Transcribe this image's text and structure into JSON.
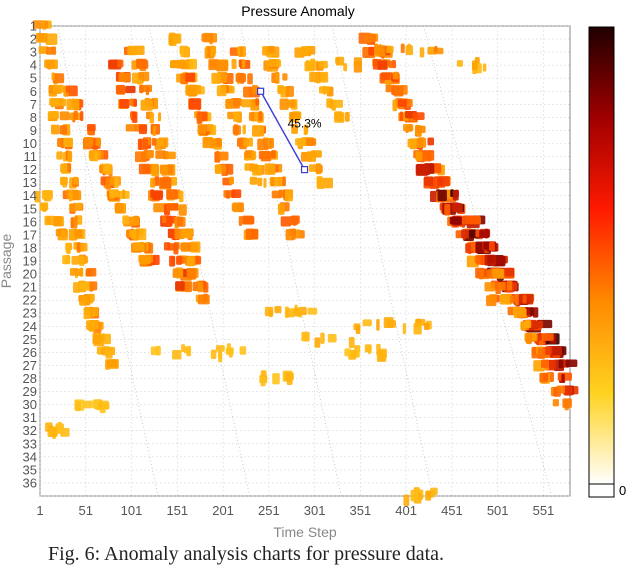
{
  "caption": "Fig. 6: Anomaly analysis charts for pressure data.",
  "colors": {
    "low": "#ffd21f",
    "mid": "#ff5a00",
    "high": "#2a0000"
  },
  "chart_data": {
    "type": "heatmap",
    "title": "Pressure Anomaly",
    "xlabel": "Time Step",
    "ylabel": "Passage",
    "x_ticks": [
      "1",
      "51",
      "101",
      "151",
      "201",
      "251",
      "301",
      "351",
      "401",
      "451",
      "501",
      "551"
    ],
    "y_ticks": [
      "1",
      "2",
      "3",
      "4",
      "5",
      "6",
      "7",
      "8",
      "9",
      "10",
      "11",
      "12",
      "13",
      "14",
      "15",
      "16",
      "17",
      "18",
      "19",
      "20",
      "21",
      "22",
      "23",
      "24",
      "25",
      "26",
      "27",
      "28",
      "29",
      "30",
      "31",
      "32",
      "33",
      "34",
      "35",
      "36"
    ],
    "xlim": [
      1,
      580
    ],
    "ylim": [
      1,
      37
    ],
    "grid": true,
    "colorbar": {
      "min_label": "0",
      "colors": [
        "#ffffff",
        "#ffd21f",
        "#ff8a00",
        "#ff1a00",
        "#a00000",
        "#200000"
      ]
    },
    "annotation": {
      "text": "45.3%",
      "from": [
        242,
        6
      ],
      "to": [
        290,
        12
      ]
    },
    "anomaly_streaks": [
      {
        "x_start": 5,
        "y_start": 1,
        "x_end": 60,
        "y_end": 24,
        "intensity": 0.45
      },
      {
        "x_start": 5,
        "y_start": 14,
        "x_end": 80,
        "y_end": 27,
        "intensity": 0.35
      },
      {
        "x_start": 30,
        "y_start": 6,
        "x_end": 120,
        "y_end": 19,
        "intensity": 0.55
      },
      {
        "x_start": 60,
        "y_start": 10,
        "x_end": 120,
        "y_end": 19,
        "intensity": 0.4
      },
      {
        "x_start": 85,
        "y_start": 4,
        "x_end": 160,
        "y_end": 21,
        "intensity": 0.6
      },
      {
        "x_start": 105,
        "y_start": 3,
        "x_end": 180,
        "y_end": 22,
        "intensity": 0.5
      },
      {
        "x_start": 150,
        "y_start": 2,
        "x_end": 190,
        "y_end": 10,
        "intensity": 0.35
      },
      {
        "x_start": 155,
        "y_start": 4,
        "x_end": 230,
        "y_end": 17,
        "intensity": 0.55
      },
      {
        "x_start": 185,
        "y_start": 2,
        "x_end": 240,
        "y_end": 13,
        "intensity": 0.45
      },
      {
        "x_start": 215,
        "y_start": 3,
        "x_end": 280,
        "y_end": 17,
        "intensity": 0.5
      },
      {
        "x_start": 250,
        "y_start": 3,
        "x_end": 310,
        "y_end": 13,
        "intensity": 0.4
      },
      {
        "x_start": 290,
        "y_start": 3,
        "x_end": 330,
        "y_end": 8,
        "intensity": 0.35
      },
      {
        "x_start": 360,
        "y_start": 2,
        "x_end": 470,
        "y_end": 18,
        "intensity": 0.55
      },
      {
        "x_start": 375,
        "y_start": 3,
        "x_end": 500,
        "y_end": 22,
        "intensity": 0.6
      },
      {
        "x_start": 420,
        "y_start": 12,
        "x_end": 560,
        "y_end": 26,
        "intensity": 0.85
      },
      {
        "x_start": 450,
        "y_start": 14,
        "x_end": 575,
        "y_end": 27,
        "intensity": 0.95
      },
      {
        "x_start": 475,
        "y_start": 16,
        "x_end": 580,
        "y_end": 29,
        "intensity": 0.8
      },
      {
        "x_start": 500,
        "y_start": 20,
        "x_end": 570,
        "y_end": 30,
        "intensity": 0.5
      }
    ],
    "anomaly_clusters": [
      {
        "x_start": 320,
        "x_end": 390,
        "y": 24,
        "intensity": 0.3
      },
      {
        "x_start": 395,
        "x_end": 430,
        "y": 24,
        "intensity": 0.3
      },
      {
        "x_start": 290,
        "x_end": 360,
        "y": 25,
        "intensity": 0.25
      },
      {
        "x_start": 230,
        "x_end": 300,
        "y": 23,
        "intensity": 0.25
      },
      {
        "x_start": 330,
        "x_end": 380,
        "y": 26,
        "intensity": 0.2
      },
      {
        "x_start": 120,
        "x_end": 170,
        "y": 26,
        "intensity": 0.2
      },
      {
        "x_start": 185,
        "x_end": 230,
        "y": 26,
        "intensity": 0.2
      },
      {
        "x_start": 240,
        "x_end": 280,
        "y": 28,
        "intensity": 0.2
      },
      {
        "x_start": 40,
        "x_end": 80,
        "y": 30,
        "intensity": 0.15
      },
      {
        "x_start": 360,
        "x_end": 440,
        "y": 3,
        "intensity": 0.4
      },
      {
        "x_start": 290,
        "x_end": 360,
        "y": 4,
        "intensity": 0.35
      },
      {
        "x_start": 440,
        "x_end": 500,
        "y": 4,
        "intensity": 0.3
      },
      {
        "x_start": 10,
        "x_end": 30,
        "y": 32,
        "intensity": 0.2
      },
      {
        "x_start": 400,
        "x_end": 440,
        "y": 37,
        "intensity": 0.25
      }
    ]
  }
}
